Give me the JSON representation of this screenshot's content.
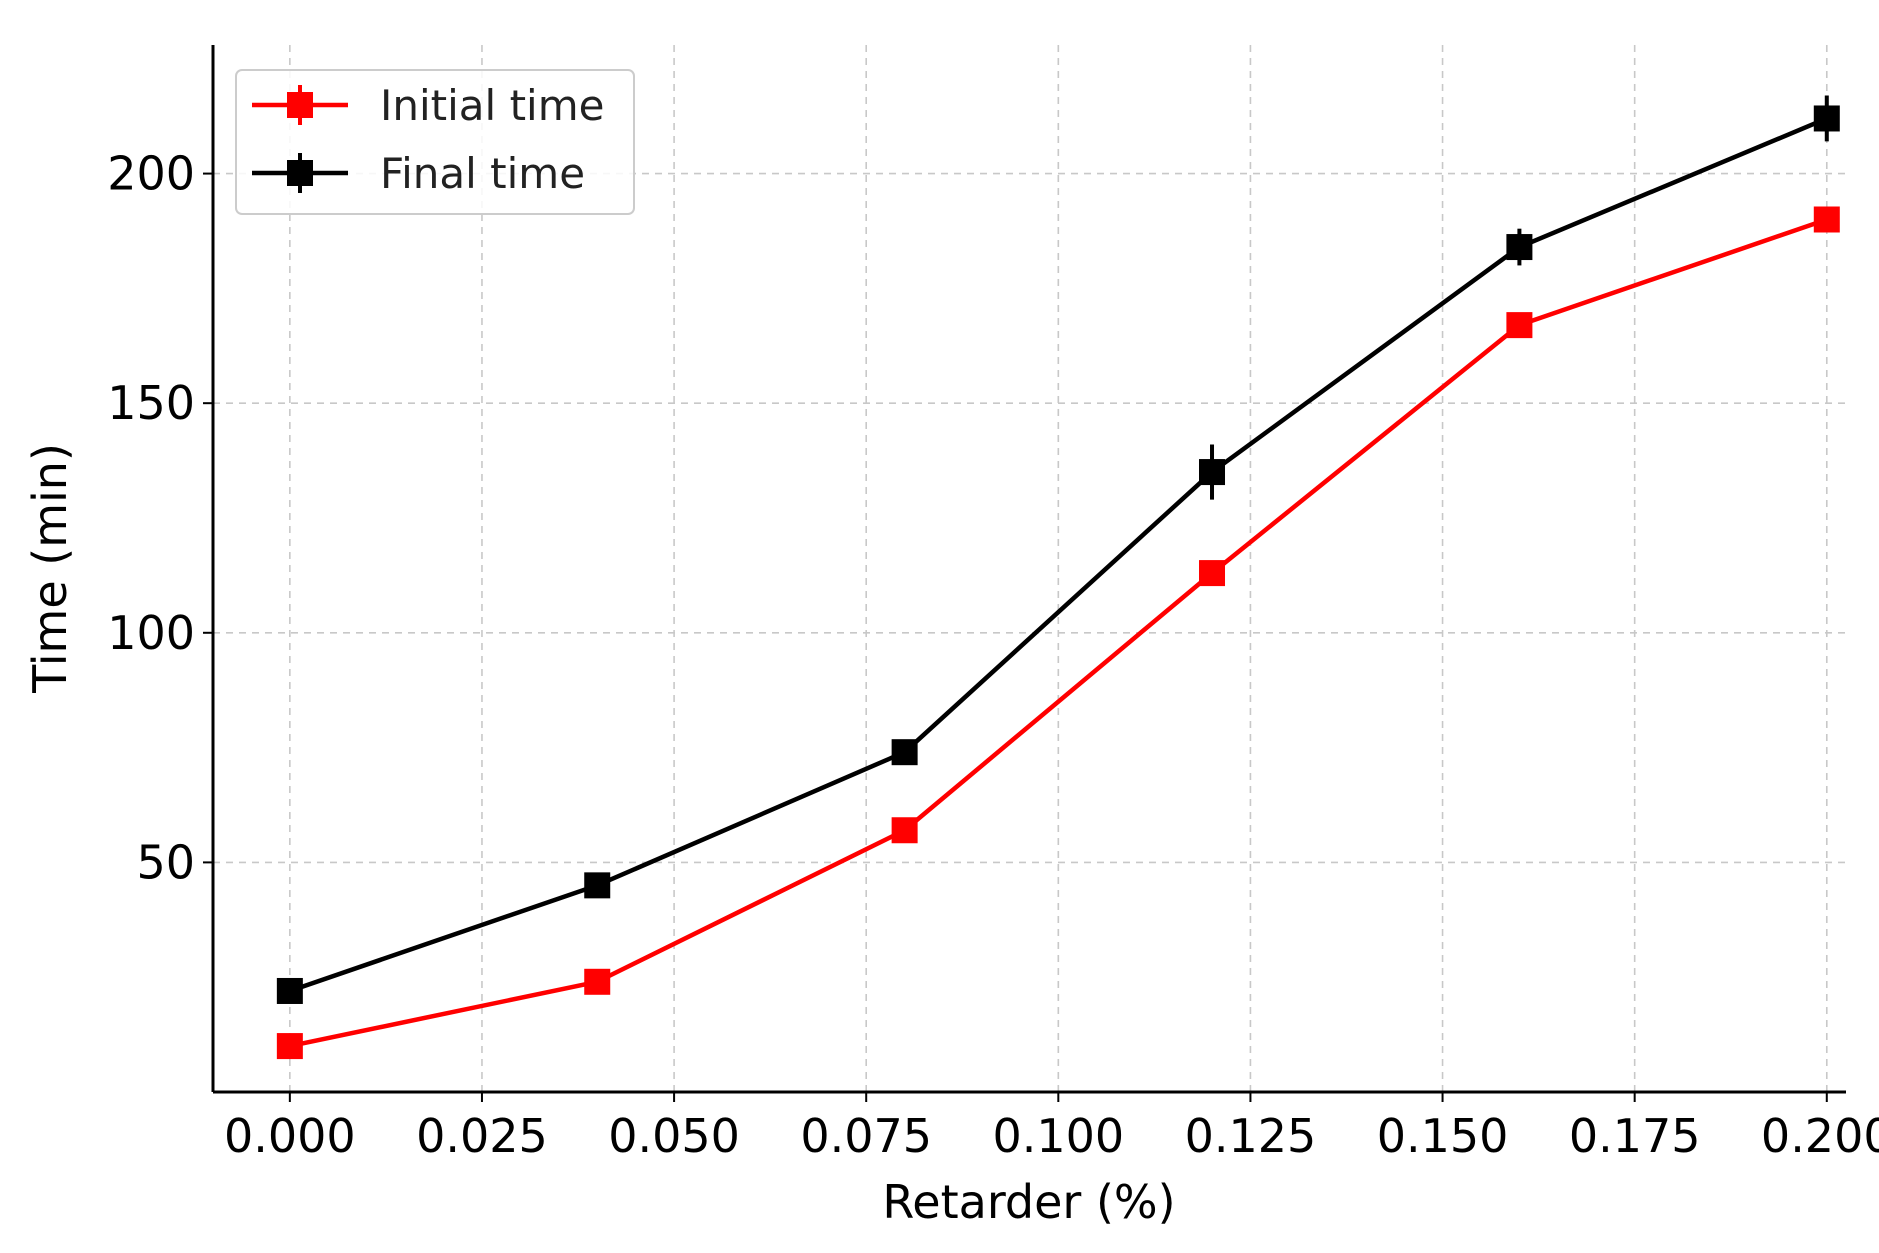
{
  "chart_data": {
    "type": "line",
    "title": "",
    "xlabel": "Retarder (%)",
    "ylabel": "Time (min)",
    "xlim": [
      -0.01,
      0.2025
    ],
    "ylim": [
      0,
      228
    ],
    "xticks": [
      "0.000",
      "0.025",
      "0.050",
      "0.075",
      "0.100",
      "0.125",
      "0.150",
      "0.175",
      "0.200"
    ],
    "yticks": [
      "50",
      "100",
      "150",
      "200"
    ],
    "grid": true,
    "legend_position": "top-left",
    "series": [
      {
        "name": "Initial time",
        "color": "#ff0000",
        "x": [
          0.0,
          0.04,
          0.08,
          0.12,
          0.16,
          0.2
        ],
        "y": [
          10,
          24,
          57,
          113,
          167,
          190
        ],
        "err": [
          1,
          1,
          1,
          1.5,
          1,
          2
        ]
      },
      {
        "name": "Final time",
        "color": "#000000",
        "x": [
          0.0,
          0.04,
          0.08,
          0.12,
          0.16,
          0.2
        ],
        "y": [
          22,
          45,
          74,
          135,
          184,
          212
        ],
        "err": [
          1,
          1,
          1,
          6,
          4,
          5
        ]
      }
    ]
  }
}
